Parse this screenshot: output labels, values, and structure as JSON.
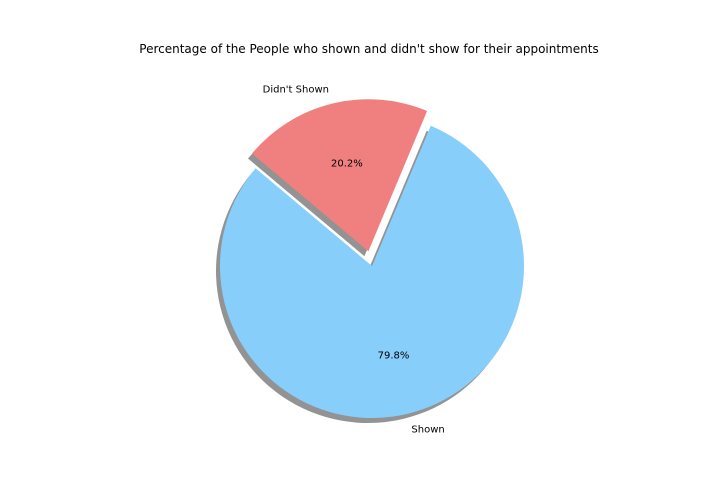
{
  "chart_data": {
    "type": "pie",
    "title": "Percentage of the People who shown and didn't show for their appointments",
    "slices": [
      {
        "label": "Shown",
        "value": 79.8,
        "pct_label": "79.8%",
        "color": "#87CEFA",
        "explode": false
      },
      {
        "label": "Didn't Shown",
        "value": 20.2,
        "pct_label": "20.2%",
        "color": "#F08080",
        "explode": true
      }
    ],
    "start_angle_deg": 140,
    "shadow": true
  }
}
